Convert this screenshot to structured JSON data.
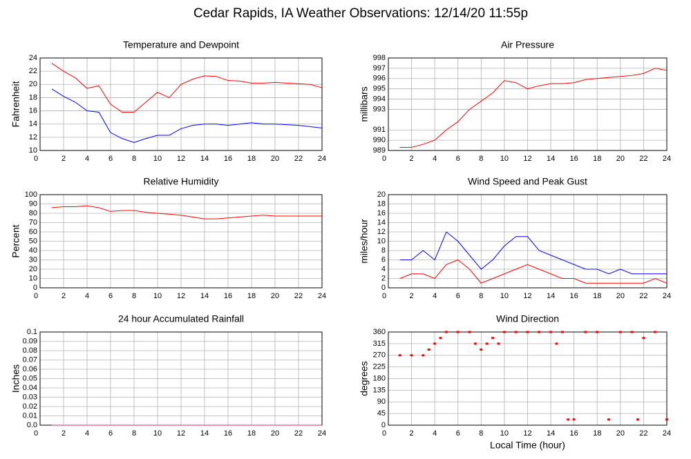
{
  "title": "Cedar Rapids, IA Weather Observations: 12/14/20 11:55p",
  "chart_data": [
    {
      "type": "line",
      "title": "Temperature and Dewpoint",
      "ylabel": "Fahrenheit",
      "x": [
        1,
        2,
        3,
        4,
        5,
        6,
        7,
        8,
        9,
        10,
        11,
        12,
        13,
        14,
        15,
        16,
        17,
        18,
        19,
        20,
        21,
        22,
        23,
        24
      ],
      "series": [
        {
          "color": "#ff0000",
          "values": [
            23.2,
            22,
            21,
            19.4,
            19.8,
            17,
            15.8,
            15.8,
            17.3,
            18.8,
            18,
            20,
            20.8,
            21.3,
            21.2,
            20.6,
            20.5,
            20.2,
            20.2,
            20.3,
            20.2,
            20.1,
            20,
            19.5
          ]
        },
        {
          "color": "#0000ff",
          "values": [
            19.3,
            18.2,
            17.3,
            16,
            15.8,
            12.7,
            11.8,
            11.2,
            11.8,
            12.3,
            12.3,
            13.3,
            13.8,
            14,
            14,
            13.8,
            14,
            14.2,
            14,
            14,
            13.9,
            13.8,
            13.6,
            13.4
          ]
        }
      ],
      "xlim": [
        0,
        24
      ],
      "xticks": [
        0,
        2,
        4,
        6,
        8,
        10,
        12,
        14,
        16,
        18,
        20,
        22,
        24
      ],
      "ylim": [
        10,
        24
      ],
      "yticks": [
        10,
        12,
        14,
        16,
        18,
        20,
        22,
        24
      ],
      "grid": true
    },
    {
      "type": "line",
      "title": "Air Pressure",
      "ylabel": "millibars",
      "x": [
        1,
        2,
        3,
        4,
        5,
        6,
        7,
        8,
        9,
        10,
        11,
        12,
        13,
        14,
        15,
        16,
        17,
        18,
        19,
        20,
        21,
        22,
        23,
        24
      ],
      "series": [
        {
          "color": "#ff0000",
          "values": [
            989.3,
            989.3,
            989.6,
            990,
            991,
            991.8,
            993,
            993.8,
            994.6,
            995.8,
            995.6,
            995,
            995.3,
            995.5,
            995.5,
            995.6,
            995.9,
            996,
            996.1,
            996.2,
            996.3,
            996.5,
            997,
            996.8
          ]
        }
      ],
      "xlim": [
        0,
        24
      ],
      "xticks": [
        0,
        2,
        4,
        6,
        8,
        10,
        12,
        14,
        16,
        18,
        20,
        22,
        24
      ],
      "ylim": [
        989,
        998
      ],
      "yticks": [
        989,
        990,
        991,
        993,
        994,
        995,
        996,
        997,
        998
      ],
      "grid": true
    },
    {
      "type": "line",
      "title": "Relative Humidity",
      "ylabel": "Percent",
      "x": [
        1,
        2,
        3,
        4,
        5,
        6,
        7,
        8,
        9,
        10,
        11,
        12,
        13,
        14,
        15,
        16,
        17,
        18,
        19,
        20,
        21,
        22,
        23,
        24
      ],
      "series": [
        {
          "color": "#ff0000",
          "values": [
            86,
            87,
            87,
            88,
            86,
            82,
            83,
            83,
            81,
            80,
            79,
            78,
            76,
            74,
            74,
            75,
            76,
            77,
            78,
            77,
            77,
            77,
            77,
            77
          ]
        }
      ],
      "xlim": [
        0,
        24
      ],
      "xticks": [
        0,
        2,
        4,
        6,
        8,
        10,
        12,
        14,
        16,
        18,
        20,
        22,
        24
      ],
      "ylim": [
        0,
        100
      ],
      "yticks": [
        0,
        10,
        20,
        30,
        40,
        50,
        60,
        70,
        80,
        90,
        100
      ],
      "grid": true
    },
    {
      "type": "line",
      "title": "Wind Speed and Peak Gust",
      "ylabel": "miles/hour",
      "x": [
        1,
        2,
        3,
        4,
        5,
        6,
        7,
        8,
        9,
        10,
        11,
        12,
        13,
        14,
        15,
        16,
        17,
        18,
        19,
        20,
        21,
        22,
        23,
        24
      ],
      "series": [
        {
          "color": "#0000ff",
          "values": [
            6,
            6,
            8,
            6,
            12,
            10,
            7,
            4,
            6,
            9,
            11,
            11,
            8,
            7,
            6,
            5,
            4,
            4,
            3,
            4,
            3,
            3,
            3,
            3
          ]
        },
        {
          "color": "#ff0000",
          "values": [
            2,
            3,
            3,
            2,
            5,
            6,
            4,
            1,
            2,
            3,
            4,
            5,
            4,
            3,
            2,
            2,
            1,
            1,
            1,
            1,
            1,
            1,
            2,
            1
          ]
        }
      ],
      "xlim": [
        0,
        24
      ],
      "xticks": [
        0,
        2,
        4,
        6,
        8,
        10,
        12,
        14,
        16,
        18,
        20,
        22,
        24
      ],
      "ylim": [
        0,
        20
      ],
      "yticks": [
        0,
        2,
        4,
        6,
        8,
        10,
        12,
        14,
        16,
        18,
        20
      ],
      "grid": true
    },
    {
      "type": "line",
      "title": "24 hour Accumulated Rainfall",
      "ylabel": "Inches",
      "x": [
        1,
        24
      ],
      "series": [
        {
          "color": "#e0206a",
          "values": [
            0,
            0
          ]
        }
      ],
      "xlim": [
        0,
        24
      ],
      "xticks": [
        0,
        2,
        4,
        6,
        8,
        10,
        12,
        14,
        16,
        18,
        20,
        22,
        24
      ],
      "ylim": [
        0,
        0.1
      ],
      "yticks": [
        {
          "value": 0,
          "label": "0.0"
        },
        0.01,
        0.02,
        0.03,
        0.04,
        0.05,
        0.06,
        0.07,
        0.08,
        0.09,
        0.1
      ],
      "grid": true
    },
    {
      "type": "scatter",
      "title": "Wind Direction",
      "ylabel": "degrees",
      "xlabel": "Local Time (hour)",
      "x": [
        1,
        2,
        3,
        3.5,
        4,
        4.5,
        5,
        6,
        7,
        7.5,
        8,
        8.5,
        9,
        9.5,
        10,
        11,
        12,
        13,
        14,
        14.5,
        15,
        15.5,
        16,
        17,
        18,
        19,
        20,
        21,
        21.5,
        22,
        23,
        24
      ],
      "series": [
        {
          "color": "#ff0000",
          "values": [
            270,
            270,
            270,
            292,
            315,
            337,
            360,
            360,
            360,
            315,
            292,
            315,
            337,
            315,
            360,
            360,
            360,
            360,
            360,
            315,
            360,
            22,
            22,
            360,
            360,
            22,
            360,
            360,
            22,
            337,
            360,
            22
          ]
        }
      ],
      "xlim": [
        0,
        24
      ],
      "xticks": [
        0,
        2,
        4,
        6,
        8,
        10,
        12,
        14,
        16,
        18,
        20,
        22,
        24
      ],
      "ylim": [
        0,
        360
      ],
      "yticks": [
        0,
        45,
        90,
        135,
        180,
        225,
        270,
        315,
        360
      ],
      "grid": true
    }
  ]
}
